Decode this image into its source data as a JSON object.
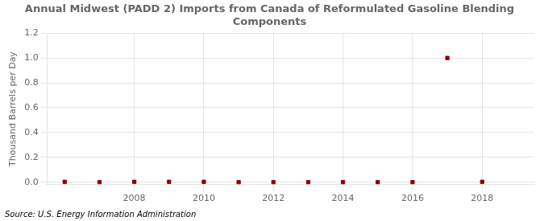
{
  "chart_data": {
    "type": "scatter",
    "title": "Annual Midwest (PADD 2) Imports from Canada of Reformulated Gasoline Blending\nComponents",
    "ylabel": "Thousand Barrels per Day",
    "annotations": [
      "Source: U.S. Energy Information Administration"
    ],
    "x": [
      2006,
      2007,
      2008,
      2009,
      2010,
      2011,
      2012,
      2013,
      2014,
      2015,
      2016,
      2017,
      2018
    ],
    "values": [
      0.003,
      0.0,
      0.003,
      0.003,
      0.003,
      0.0,
      0.0,
      0.0,
      0.0,
      0.0,
      0.0,
      1.0,
      0.003
    ],
    "color": "#8b0000",
    "marker": "square",
    "xlim": [
      2005.5,
      2019.5
    ],
    "ylim": [
      -0.02,
      1.2
    ],
    "xticks": [
      2008,
      2010,
      2012,
      2014,
      2016,
      2018
    ],
    "yticks": [
      {
        "value": 0,
        "label": "0.0"
      },
      0.2,
      0.4,
      0.6,
      0.8,
      {
        "value": 1,
        "label": "1.0"
      },
      1.2
    ],
    "grid": true
  }
}
